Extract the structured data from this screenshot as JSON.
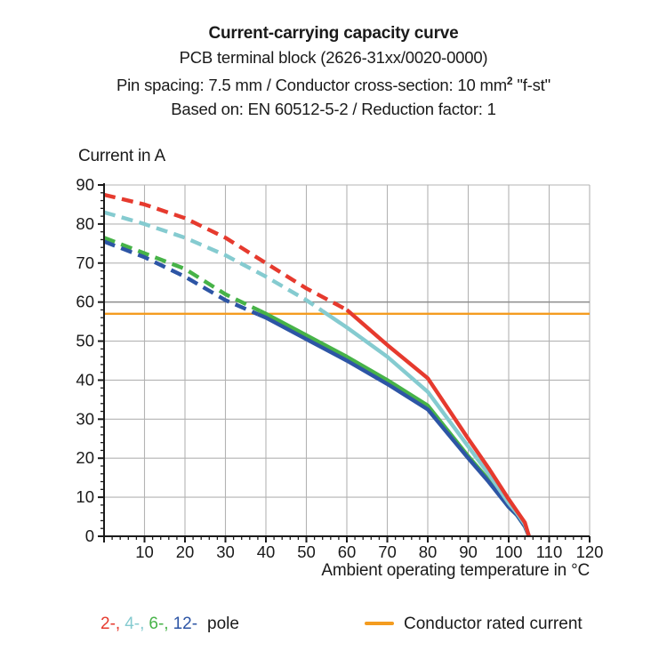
{
  "title": {
    "line1": "Current-carrying capacity curve",
    "line2": "PCB terminal block (2626-31xx/0020-0000)",
    "line3_prefix": "Pin spacing: 7.5 mm / Conductor cross-section: 10 mm",
    "line3_sup": "2",
    "line3_suffix": " \"f-st\"",
    "line4": "Based on: EN 60512-5-2 / Reduction factor: 1"
  },
  "chart_data": {
    "type": "line",
    "title": "Current-carrying capacity curve",
    "xlabel": "Ambient operating temperature in °C",
    "ylabel": "Current in A",
    "xlim": [
      0,
      120
    ],
    "ylim": [
      0,
      90
    ],
    "x_ticks": [
      10,
      20,
      30,
      40,
      50,
      60,
      70,
      80,
      90,
      100,
      110,
      120
    ],
    "y_ticks": [
      0,
      10,
      20,
      30,
      40,
      50,
      60,
      70,
      80,
      90
    ],
    "minor_tick_step": 2,
    "grid": true,
    "emphasis_gridline_y": 60,
    "legend_position": "bottom",
    "x": [
      0,
      10,
      20,
      30,
      40,
      50,
      60,
      70,
      80,
      90,
      95,
      100,
      102,
      104,
      105
    ],
    "series": [
      {
        "name": "6-pole",
        "color": "#47B348",
        "dash_until_x": 38.5,
        "values": [
          76.5,
          72.5,
          68.5,
          62,
          57,
          51.5,
          46,
          40,
          33.5,
          20.5,
          14.5,
          7.5,
          5.5,
          2.5,
          0
        ]
      },
      {
        "name": "12-pole",
        "color": "#2D55A5",
        "dash_until_x": 38,
        "values": [
          75.5,
          71.5,
          66.5,
          60.5,
          56,
          50.5,
          45,
          39,
          32.5,
          20,
          14,
          7.5,
          5.5,
          2.5,
          0
        ]
      },
      {
        "name": "4-pole",
        "color": "#85CBD0",
        "dash_until_x": 54,
        "values": [
          83,
          80,
          76.5,
          72,
          66.5,
          60.5,
          53.5,
          46,
          37,
          23,
          16,
          8.5,
          6,
          3,
          0
        ]
      },
      {
        "name": "2-pole",
        "color": "#E63A2E",
        "dash_until_x": 60,
        "values": [
          87.5,
          85,
          81.5,
          76.5,
          70,
          63.5,
          58,
          49,
          40.5,
          25,
          17.5,
          9.5,
          6.5,
          3.5,
          0
        ]
      }
    ],
    "reference_line": {
      "label": "Conductor rated current",
      "y": 57,
      "color": "#F49C20"
    }
  },
  "legend": {
    "poles": [
      {
        "label": "2-,",
        "color": "#E63A2E"
      },
      {
        "label": "4-,",
        "color": "#85CBD0"
      },
      {
        "label": "6-,",
        "color": "#47B348"
      },
      {
        "label": "12-",
        "color": "#2D55A5"
      }
    ],
    "pole_word": "pole",
    "rated_label": "Conductor rated current",
    "rated_color": "#F49C20"
  },
  "colors": {
    "grid": "#B3B3B3",
    "grid_emphasis": "#8C8C8C",
    "axis": "#1A1A1A",
    "text": "#1A1A1A"
  }
}
